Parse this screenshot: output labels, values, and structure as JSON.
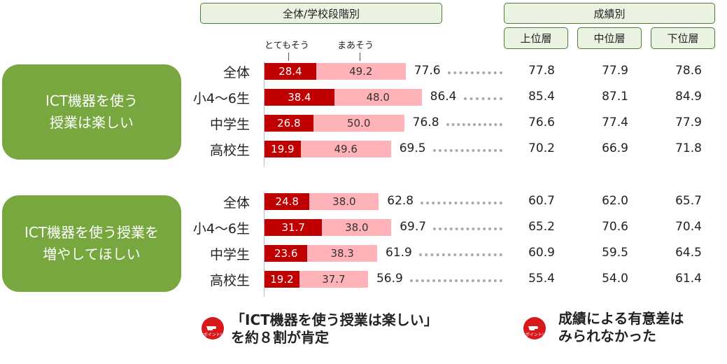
{
  "headers": {
    "school_stage": "全体/学校段階別",
    "grade": "成績別",
    "grade_cols": [
      "上位層",
      "中位層",
      "下位層"
    ]
  },
  "legend": {
    "very": "とてもそう",
    "somewhat": "まあそう"
  },
  "colors": {
    "very": "#c00000",
    "somewhat": "#ffb3b8",
    "question_bg": "#78a73f"
  },
  "icon": {
    "name": "pointing-hand-icon",
    "label": "ポイント!"
  },
  "conclusions": [
    "「ICT機器を使う授業は楽しい」\nを約８割が肯定",
    "成績による有意差は\nみられなかった"
  ],
  "chart_data": {
    "type": "bar",
    "stacked": true,
    "orientation": "horizontal",
    "xlim": [
      0,
      100
    ],
    "groups": [
      {
        "question": "ICT機器を使う\n授業は楽しい",
        "rows": [
          {
            "label": "全体",
            "very": 28.4,
            "somewhat": 49.2,
            "very_label": "28.4",
            "somewhat_label": "49.2",
            "total": "77.6",
            "upper": "77.8",
            "middle": "77.9",
            "lower": "78.6"
          },
          {
            "label": "小4〜6生",
            "very": 38.4,
            "somewhat": 48.0,
            "very_label": "38.4",
            "somewhat_label": "48.0",
            "total": "86.4",
            "upper": "85.4",
            "middle": "87.1",
            "lower": "84.9"
          },
          {
            "label": "中学生",
            "very": 26.8,
            "somewhat": 50.0,
            "very_label": "26.8",
            "somewhat_label": "50.0",
            "total": "76.8",
            "upper": "76.6",
            "middle": "77.4",
            "lower": "77.9"
          },
          {
            "label": "高校生",
            "very": 19.9,
            "somewhat": 49.6,
            "very_label": "19.9",
            "somewhat_label": "49.6",
            "total": "69.5",
            "upper": "70.2",
            "middle": "66.9",
            "lower": "71.8"
          }
        ]
      },
      {
        "question": "ICT機器を使う授業を\n増やしてほしい",
        "rows": [
          {
            "label": "全体",
            "very": 24.8,
            "somewhat": 38.0,
            "very_label": "24.8",
            "somewhat_label": "38.0",
            "total": "62.8",
            "upper": "60.7",
            "middle": "62.0",
            "lower": "65.7"
          },
          {
            "label": "小4〜6生",
            "very": 31.7,
            "somewhat": 38.0,
            "very_label": "31.7",
            "somewhat_label": "38.0",
            "total": "69.7",
            "upper": "65.2",
            "middle": "70.6",
            "lower": "70.4"
          },
          {
            "label": "中学生",
            "very": 23.6,
            "somewhat": 38.3,
            "very_label": "23.6",
            "somewhat_label": "38.3",
            "total": "61.9",
            "upper": "60.9",
            "middle": "59.5",
            "lower": "64.5"
          },
          {
            "label": "高校生",
            "very": 19.2,
            "somewhat": 37.7,
            "very_label": "19.2",
            "somewhat_label": "37.7",
            "total": "56.9",
            "upper": "55.4",
            "middle": "54.0",
            "lower": "61.4"
          }
        ]
      }
    ]
  }
}
